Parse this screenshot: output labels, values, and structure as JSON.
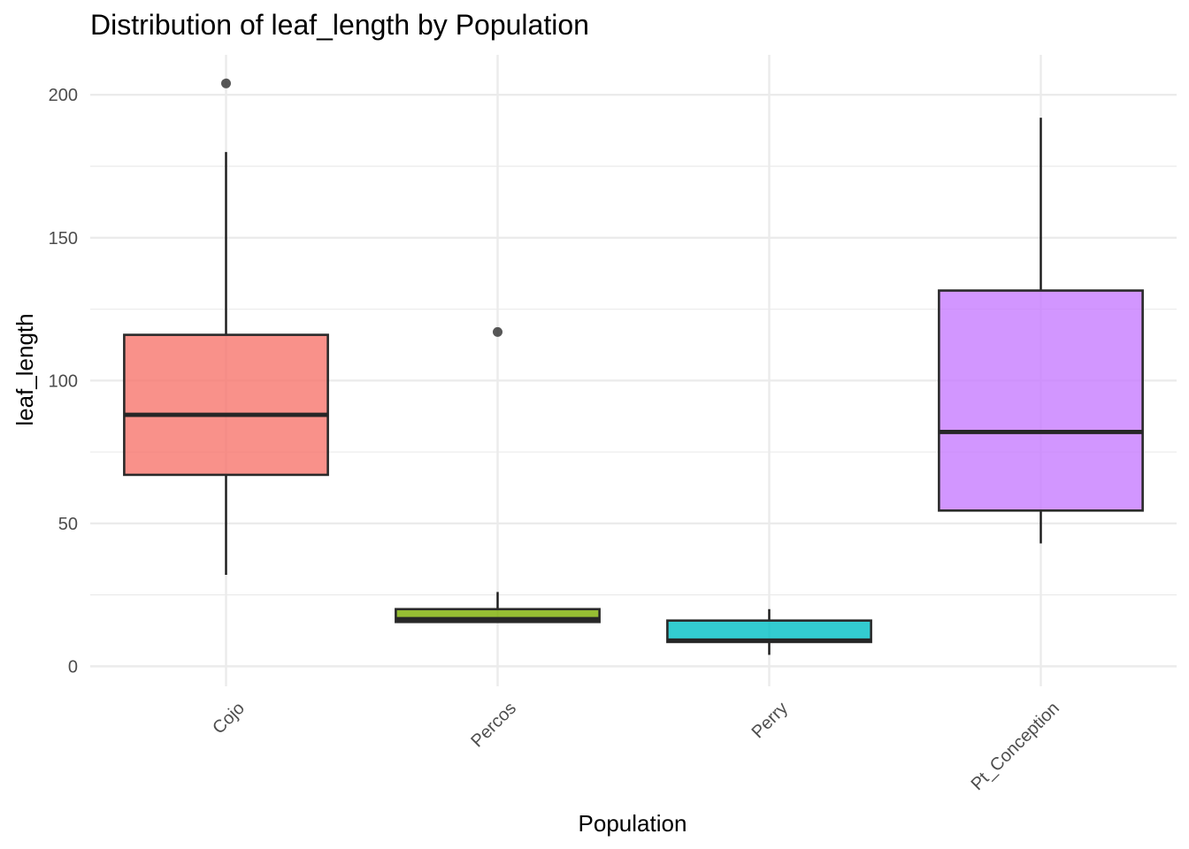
{
  "chart_data": {
    "type": "boxplot",
    "title": "Distribution of leaf_length by Population",
    "xlabel": "Population",
    "ylabel": "leaf_length",
    "categories": [
      "Cojo",
      "Percos",
      "Perry",
      "Pt_Conception"
    ],
    "ylim": [
      -7,
      214
    ],
    "yticks": [
      0,
      50,
      100,
      150,
      200
    ],
    "grid": true,
    "legend": "none",
    "x_tick_rotation_deg": 45,
    "boxes": [
      {
        "category": "Cojo",
        "min": 32,
        "q1": 67,
        "median": 88,
        "q3": 116,
        "max": 180,
        "outliers": [
          204
        ],
        "color": "#f8766d"
      },
      {
        "category": "Percos",
        "min": 15.5,
        "q1": 15.5,
        "median": 16.5,
        "q3": 20,
        "max": 26,
        "outliers": [
          117
        ],
        "color": "#7cae00"
      },
      {
        "category": "Perry",
        "min": 4,
        "q1": 8.5,
        "median": 9,
        "q3": 16,
        "max": 20,
        "outliers": [],
        "color": "#00bfc4"
      },
      {
        "category": "Pt_Conception",
        "min": 43,
        "q1": 54.5,
        "median": 82,
        "q3": 131.5,
        "max": 192,
        "outliers": [],
        "color": "#c77cff"
      }
    ]
  }
}
